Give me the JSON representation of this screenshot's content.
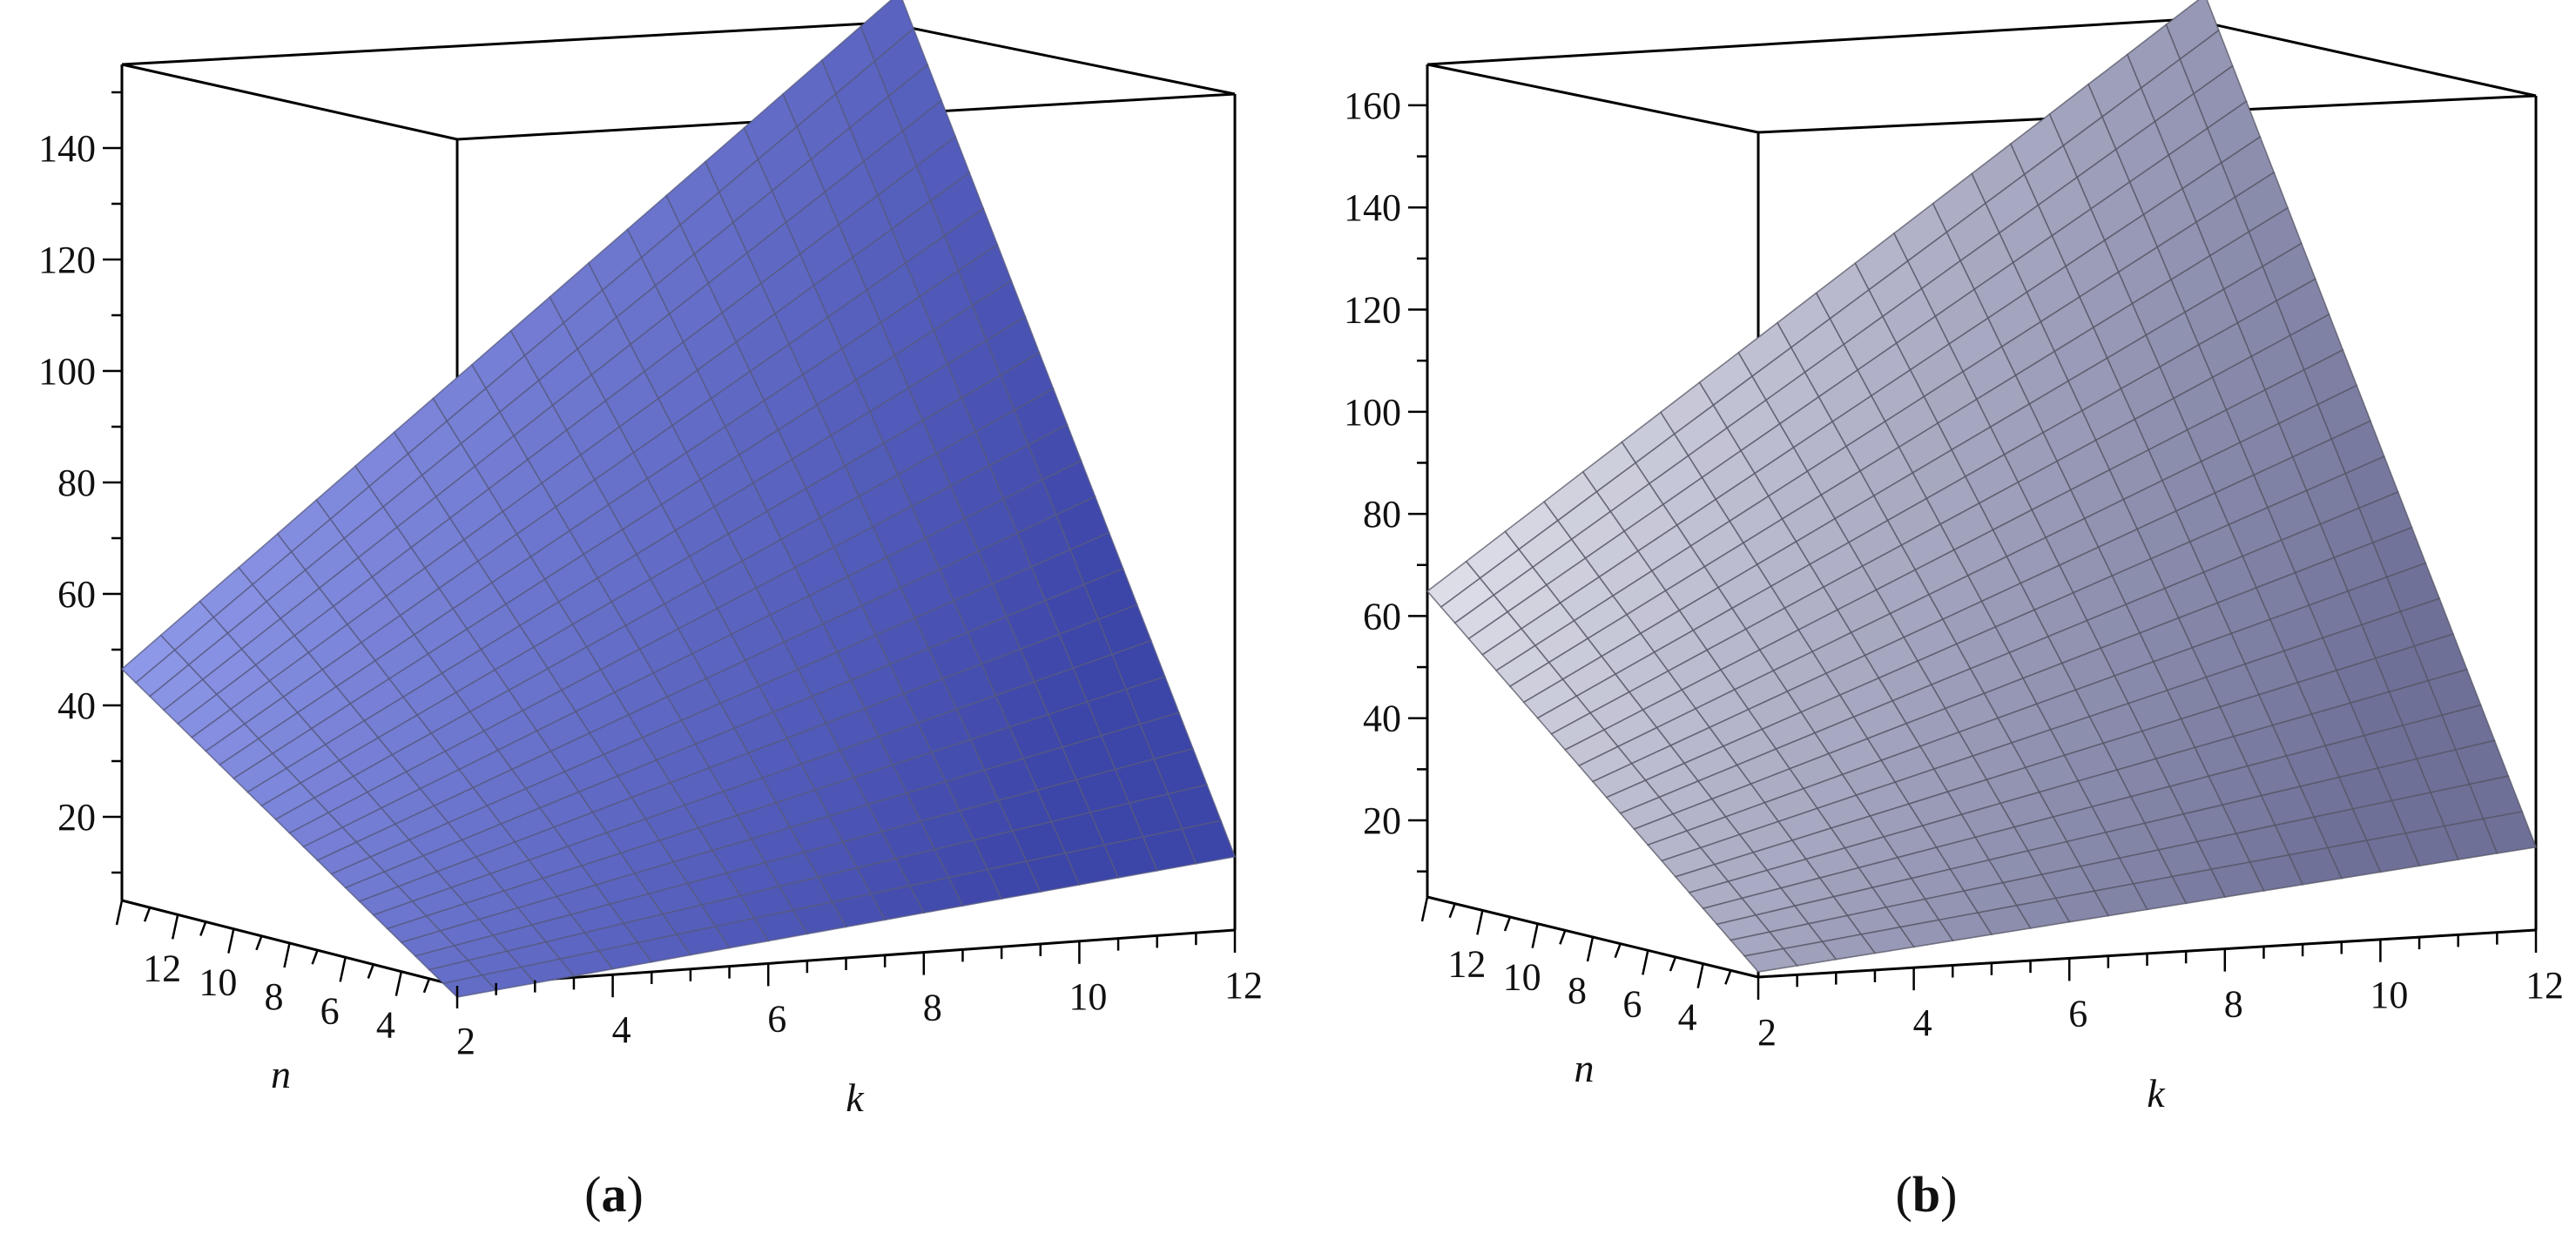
{
  "chart_data": [
    {
      "type": "surface3d",
      "panel": "a",
      "caption": "a",
      "xlabel": "k",
      "ylabel": "n",
      "zlabel": "",
      "k_range": [
        2,
        12
      ],
      "n_range": [
        2,
        14
      ],
      "z_range": [
        5,
        155
      ],
      "k_ticks": [
        "2",
        "4",
        "6",
        "8",
        "10",
        "12"
      ],
      "n_ticks": [
        "4",
        "6",
        "8",
        "10",
        "12"
      ],
      "z_ticks": [
        "20",
        "40",
        "60",
        "80",
        "100",
        "120",
        "140"
      ],
      "corner_values": {
        "k2_n2": 3,
        "k12_n2": 18,
        "k2_n14": 46,
        "k12_n14": 156
      },
      "surface_colors": {
        "light": "#9fa9f5",
        "dark": "#3c45a8"
      },
      "grid_color": "#555a80"
    },
    {
      "type": "surface3d",
      "panel": "b",
      "caption": "b",
      "xlabel": "k",
      "ylabel": "n",
      "zlabel": "",
      "k_range": [
        2,
        12
      ],
      "n_range": [
        2,
        14
      ],
      "z_range": [
        5,
        168
      ],
      "k_ticks": [
        "2",
        "4",
        "6",
        "8",
        "10",
        "12"
      ],
      "n_ticks": [
        "4",
        "6",
        "8",
        "10",
        "12"
      ],
      "z_ticks": [
        "20",
        "40",
        "60",
        "80",
        "100",
        "120",
        "140",
        "160"
      ],
      "corner_values": {
        "k2_n2": 6,
        "k12_n2": 21,
        "k2_n14": 64,
        "k12_n14": 170
      },
      "surface_colors": {
        "light": "#f4f4f8",
        "dark": "#6e7098"
      },
      "grid_color": "#555566"
    }
  ]
}
